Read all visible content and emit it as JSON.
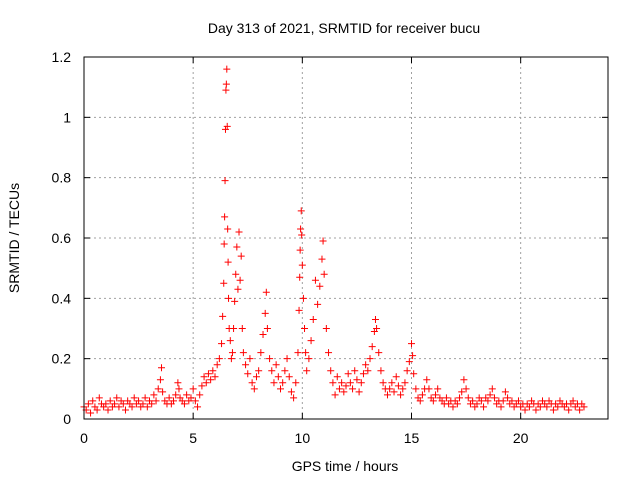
{
  "chart_data": {
    "type": "scatter",
    "title": "Day 313 of 2021, SRMTID for receiver bucu",
    "xlabel": "GPS time / hours",
    "ylabel": "SRMTID / TECUs",
    "xlim": [
      0,
      24
    ],
    "ylim": [
      0,
      1.2
    ],
    "x_ticks": [
      0,
      5,
      10,
      15,
      20
    ],
    "x_tick_labels": [
      "0",
      "5",
      "10",
      "15",
      "20"
    ],
    "y_ticks": [
      0,
      0.2,
      0.4,
      0.6,
      0.8,
      1.0,
      1.2
    ],
    "y_tick_labels": [
      "0",
      "0.2",
      "0.4",
      "0.6",
      "0.8",
      "1",
      "1.2"
    ],
    "grid": true,
    "marker": "+",
    "color": "#ff0000",
    "series": [
      {
        "name": "SRMTID",
        "points": [
          [
            0.0,
            0.04
          ],
          [
            0.1,
            0.03
          ],
          [
            0.2,
            0.05
          ],
          [
            0.3,
            0.02
          ],
          [
            0.4,
            0.06
          ],
          [
            0.5,
            0.04
          ],
          [
            0.6,
            0.03
          ],
          [
            0.7,
            0.07
          ],
          [
            0.8,
            0.05
          ],
          [
            0.9,
            0.04
          ],
          [
            1.0,
            0.05
          ],
          [
            1.1,
            0.03
          ],
          [
            1.2,
            0.06
          ],
          [
            1.3,
            0.04
          ],
          [
            1.4,
            0.05
          ],
          [
            1.5,
            0.07
          ],
          [
            1.6,
            0.04
          ],
          [
            1.7,
            0.06
          ],
          [
            1.8,
            0.05
          ],
          [
            1.9,
            0.03
          ],
          [
            2.0,
            0.06
          ],
          [
            2.1,
            0.05
          ],
          [
            2.2,
            0.04
          ],
          [
            2.3,
            0.07
          ],
          [
            2.4,
            0.05
          ],
          [
            2.5,
            0.06
          ],
          [
            2.6,
            0.04
          ],
          [
            2.7,
            0.05
          ],
          [
            2.8,
            0.07
          ],
          [
            2.9,
            0.04
          ],
          [
            3.0,
            0.06
          ],
          [
            3.1,
            0.05
          ],
          [
            3.2,
            0.08
          ],
          [
            3.3,
            0.06
          ],
          [
            3.4,
            0.1
          ],
          [
            3.5,
            0.13
          ],
          [
            3.55,
            0.17
          ],
          [
            3.6,
            0.09
          ],
          [
            3.7,
            0.06
          ],
          [
            3.8,
            0.05
          ],
          [
            3.9,
            0.07
          ],
          [
            4.0,
            0.05
          ],
          [
            4.1,
            0.06
          ],
          [
            4.2,
            0.08
          ],
          [
            4.3,
            0.12
          ],
          [
            4.35,
            0.1
          ],
          [
            4.4,
            0.07
          ],
          [
            4.5,
            0.06
          ],
          [
            4.6,
            0.05
          ],
          [
            4.7,
            0.08
          ],
          [
            4.8,
            0.06
          ],
          [
            4.9,
            0.07
          ],
          [
            5.0,
            0.1
          ],
          [
            5.1,
            0.06
          ],
          [
            5.2,
            0.04
          ],
          [
            5.3,
            0.08
          ],
          [
            5.4,
            0.11
          ],
          [
            5.5,
            0.14
          ],
          [
            5.6,
            0.12
          ],
          [
            5.7,
            0.15
          ],
          [
            5.8,
            0.13
          ],
          [
            5.9,
            0.16
          ],
          [
            6.0,
            0.14
          ],
          [
            6.1,
            0.18
          ],
          [
            6.2,
            0.2
          ],
          [
            6.3,
            0.25
          ],
          [
            6.35,
            0.34
          ],
          [
            6.4,
            0.45
          ],
          [
            6.42,
            0.58
          ],
          [
            6.44,
            0.67
          ],
          [
            6.46,
            0.79
          ],
          [
            6.48,
            0.96
          ],
          [
            6.5,
            1.09
          ],
          [
            6.52,
            1.11
          ],
          [
            6.54,
            1.16
          ],
          [
            6.56,
            0.97
          ],
          [
            6.58,
            0.63
          ],
          [
            6.6,
            0.52
          ],
          [
            6.62,
            0.4
          ],
          [
            6.65,
            0.3
          ],
          [
            6.7,
            0.26
          ],
          [
            6.75,
            0.2
          ],
          [
            6.8,
            0.22
          ],
          [
            6.85,
            0.3
          ],
          [
            6.9,
            0.39
          ],
          [
            6.95,
            0.48
          ],
          [
            7.0,
            0.57
          ],
          [
            7.05,
            0.43
          ],
          [
            7.1,
            0.62
          ],
          [
            7.15,
            0.46
          ],
          [
            7.2,
            0.54
          ],
          [
            7.25,
            0.3
          ],
          [
            7.3,
            0.22
          ],
          [
            7.4,
            0.18
          ],
          [
            7.5,
            0.15
          ],
          [
            7.6,
            0.2
          ],
          [
            7.7,
            0.12
          ],
          [
            7.8,
            0.1
          ],
          [
            7.9,
            0.14
          ],
          [
            8.0,
            0.16
          ],
          [
            8.1,
            0.22
          ],
          [
            8.2,
            0.28
          ],
          [
            8.3,
            0.35
          ],
          [
            8.35,
            0.42
          ],
          [
            8.4,
            0.3
          ],
          [
            8.5,
            0.2
          ],
          [
            8.6,
            0.16
          ],
          [
            8.7,
            0.12
          ],
          [
            8.8,
            0.18
          ],
          [
            8.9,
            0.14
          ],
          [
            9.0,
            0.1
          ],
          [
            9.1,
            0.12
          ],
          [
            9.2,
            0.16
          ],
          [
            9.3,
            0.2
          ],
          [
            9.4,
            0.14
          ],
          [
            9.5,
            0.09
          ],
          [
            9.6,
            0.07
          ],
          [
            9.7,
            0.12
          ],
          [
            9.8,
            0.22
          ],
          [
            9.85,
            0.36
          ],
          [
            9.88,
            0.47
          ],
          [
            9.9,
            0.56
          ],
          [
            9.92,
            0.63
          ],
          [
            9.95,
            0.69
          ],
          [
            9.97,
            0.61
          ],
          [
            10.0,
            0.51
          ],
          [
            10.05,
            0.4
          ],
          [
            10.1,
            0.3
          ],
          [
            10.15,
            0.22
          ],
          [
            10.2,
            0.16
          ],
          [
            10.3,
            0.2
          ],
          [
            10.4,
            0.26
          ],
          [
            10.5,
            0.33
          ],
          [
            10.6,
            0.46
          ],
          [
            10.7,
            0.38
          ],
          [
            10.8,
            0.44
          ],
          [
            10.9,
            0.53
          ],
          [
            10.95,
            0.59
          ],
          [
            11.0,
            0.48
          ],
          [
            11.1,
            0.3
          ],
          [
            11.2,
            0.22
          ],
          [
            11.3,
            0.16
          ],
          [
            11.4,
            0.12
          ],
          [
            11.5,
            0.08
          ],
          [
            11.6,
            0.14
          ],
          [
            11.7,
            0.1
          ],
          [
            11.8,
            0.12
          ],
          [
            11.9,
            0.09
          ],
          [
            12.0,
            0.11
          ],
          [
            12.1,
            0.15
          ],
          [
            12.2,
            0.12
          ],
          [
            12.3,
            0.1
          ],
          [
            12.4,
            0.16
          ],
          [
            12.5,
            0.13
          ],
          [
            12.6,
            0.09
          ],
          [
            12.7,
            0.12
          ],
          [
            12.8,
            0.15
          ],
          [
            12.9,
            0.18
          ],
          [
            13.0,
            0.16
          ],
          [
            13.1,
            0.2
          ],
          [
            13.2,
            0.24
          ],
          [
            13.3,
            0.29
          ],
          [
            13.35,
            0.33
          ],
          [
            13.4,
            0.3
          ],
          [
            13.5,
            0.22
          ],
          [
            13.6,
            0.16
          ],
          [
            13.7,
            0.12
          ],
          [
            13.8,
            0.1
          ],
          [
            13.9,
            0.08
          ],
          [
            14.0,
            0.1
          ],
          [
            14.1,
            0.12
          ],
          [
            14.2,
            0.09
          ],
          [
            14.3,
            0.14
          ],
          [
            14.4,
            0.11
          ],
          [
            14.5,
            0.08
          ],
          [
            14.6,
            0.1
          ],
          [
            14.7,
            0.12
          ],
          [
            14.8,
            0.16
          ],
          [
            14.9,
            0.19
          ],
          [
            15.0,
            0.25
          ],
          [
            15.05,
            0.21
          ],
          [
            15.1,
            0.15
          ],
          [
            15.2,
            0.1
          ],
          [
            15.3,
            0.07
          ],
          [
            15.4,
            0.06
          ],
          [
            15.5,
            0.08
          ],
          [
            15.6,
            0.1
          ],
          [
            15.7,
            0.13
          ],
          [
            15.8,
            0.1
          ],
          [
            15.9,
            0.07
          ],
          [
            16.0,
            0.06
          ],
          [
            16.1,
            0.08
          ],
          [
            16.2,
            0.1
          ],
          [
            16.3,
            0.07
          ],
          [
            16.4,
            0.06
          ],
          [
            16.5,
            0.05
          ],
          [
            16.6,
            0.07
          ],
          [
            16.7,
            0.05
          ],
          [
            16.8,
            0.06
          ],
          [
            16.9,
            0.04
          ],
          [
            17.0,
            0.06
          ],
          [
            17.1,
            0.05
          ],
          [
            17.2,
            0.07
          ],
          [
            17.3,
            0.09
          ],
          [
            17.4,
            0.13
          ],
          [
            17.5,
            0.1
          ],
          [
            17.6,
            0.07
          ],
          [
            17.7,
            0.05
          ],
          [
            17.8,
            0.06
          ],
          [
            17.9,
            0.04
          ],
          [
            18.0,
            0.05
          ],
          [
            18.1,
            0.07
          ],
          [
            18.2,
            0.06
          ],
          [
            18.3,
            0.04
          ],
          [
            18.4,
            0.07
          ],
          [
            18.5,
            0.06
          ],
          [
            18.6,
            0.08
          ],
          [
            18.7,
            0.1
          ],
          [
            18.8,
            0.07
          ],
          [
            18.9,
            0.05
          ],
          [
            19.0,
            0.06
          ],
          [
            19.1,
            0.04
          ],
          [
            19.2,
            0.06
          ],
          [
            19.3,
            0.09
          ],
          [
            19.4,
            0.07
          ],
          [
            19.5,
            0.05
          ],
          [
            19.6,
            0.06
          ],
          [
            19.7,
            0.04
          ],
          [
            19.8,
            0.05
          ],
          [
            19.9,
            0.06
          ],
          [
            20.0,
            0.04
          ],
          [
            20.1,
            0.05
          ],
          [
            20.2,
            0.03
          ],
          [
            20.3,
            0.05
          ],
          [
            20.4,
            0.04
          ],
          [
            20.5,
            0.06
          ],
          [
            20.6,
            0.05
          ],
          [
            20.7,
            0.03
          ],
          [
            20.8,
            0.05
          ],
          [
            20.9,
            0.04
          ],
          [
            21.0,
            0.06
          ],
          [
            21.1,
            0.05
          ],
          [
            21.2,
            0.04
          ],
          [
            21.3,
            0.06
          ],
          [
            21.4,
            0.05
          ],
          [
            21.5,
            0.03
          ],
          [
            21.6,
            0.05
          ],
          [
            21.7,
            0.04
          ],
          [
            21.8,
            0.06
          ],
          [
            21.9,
            0.05
          ],
          [
            22.0,
            0.04
          ],
          [
            22.1,
            0.05
          ],
          [
            22.2,
            0.03
          ],
          [
            22.3,
            0.05
          ],
          [
            22.4,
            0.06
          ],
          [
            22.5,
            0.04
          ],
          [
            22.6,
            0.05
          ],
          [
            22.7,
            0.03
          ],
          [
            22.8,
            0.05
          ],
          [
            22.9,
            0.04
          ]
        ]
      }
    ]
  }
}
